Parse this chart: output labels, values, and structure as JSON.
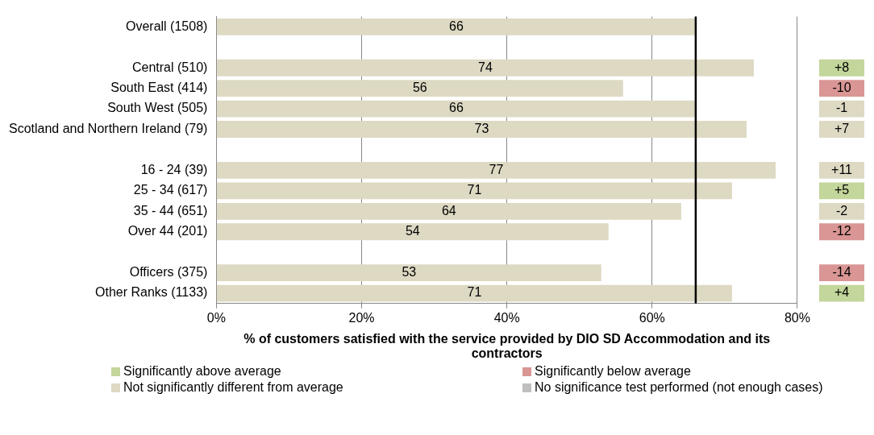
{
  "chart_data": [
    {
      "type": "bar",
      "orientation": "horizontal",
      "categories": [
        "Overall (1508)",
        null,
        "Central (510)",
        "South East (414)",
        "South West (505)",
        "Scotland and Northern Ireland (79)",
        null,
        "16 - 24 (39)",
        "25 - 34 (617)",
        "35 - 44 (651)",
        "Over 44 (201)",
        null,
        "Officers (375)",
        "Other Ranks (1133)"
      ],
      "values": [
        66,
        null,
        74,
        56,
        66,
        73,
        null,
        77,
        71,
        64,
        54,
        null,
        53,
        71
      ],
      "color": "#ddd9c3",
      "data_labels": true,
      "xlim": [
        0,
        80
      ],
      "xticks": [
        {
          "value": 0,
          "label": "0%"
        },
        {
          "value": 20,
          "label": "20%"
        },
        {
          "value": 40,
          "label": "40%"
        },
        {
          "value": 60,
          "label": "60%"
        },
        {
          "value": 80,
          "label": "80%"
        }
      ],
      "xlabel": "% of customers satisfied with the service provided by DIO SD Accommodation and its contractors",
      "grid": "x",
      "ref_lines": [
        {
          "axis": "x",
          "value": 66,
          "color": "#000000"
        }
      ]
    },
    {
      "type": "other",
      "legend": "bottom",
      "categories": [
        null,
        null,
        "+8",
        "-10",
        "-1",
        "+7",
        null,
        "+11",
        "+5",
        "-2",
        "-12",
        null,
        "-14",
        "+4"
      ],
      "colors": [
        null,
        null,
        "#c3d69b",
        "#d99694",
        "#ddd9c3",
        "#ddd9c3",
        null,
        "#ddd9c3",
        "#c3d69b",
        "#ddd9c3",
        "#d99694",
        null,
        "#d99694",
        "#c3d69b"
      ],
      "series": [
        {
          "name": "Significantly above average",
          "color": "#c3d69b",
          "values": [
            null,
            null,
            null,
            null,
            null,
            null,
            null,
            null,
            null,
            null,
            null,
            null,
            null,
            null
          ]
        },
        {
          "name": "Significantly below average",
          "color": "#d99694",
          "values": [
            null,
            null,
            null,
            null,
            null,
            null,
            null,
            null,
            null,
            null,
            null,
            null,
            null,
            null
          ]
        },
        {
          "name": "Not significantly different from average",
          "color": "#ddd9c3",
          "values": [
            null,
            null,
            null,
            null,
            null,
            null,
            null,
            null,
            null,
            null,
            null,
            null,
            null,
            null
          ]
        },
        {
          "name": "No significance test performed (not enough cases)",
          "color": "#bfbfbf",
          "values": [
            null,
            null,
            null,
            null,
            null,
            null,
            null,
            null,
            null,
            null,
            null,
            null,
            null,
            null
          ]
        }
      ]
    }
  ]
}
